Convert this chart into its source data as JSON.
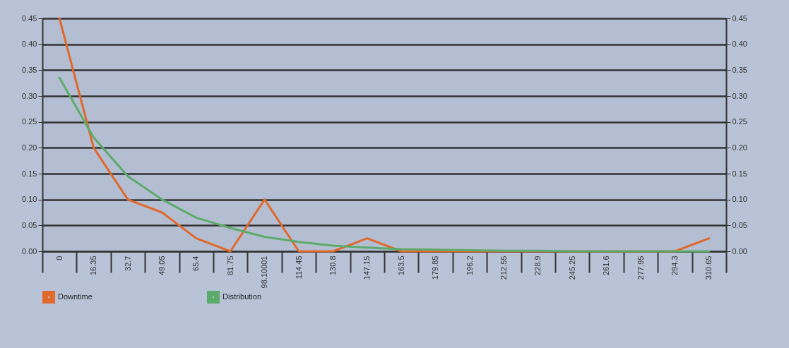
{
  "chart_data": {
    "type": "line",
    "categories": [
      "0",
      "16.35",
      "32.7",
      "49.05",
      "65.4",
      "81.75",
      "98.10001",
      "114.45",
      "130.8",
      "147.15",
      "163.5",
      "179.85",
      "196.2",
      "212.55",
      "228.9",
      "245.25",
      "261.6",
      "277.95",
      "294.3",
      "310.65"
    ],
    "series": [
      {
        "name": "Downtime",
        "color": "#e0692c",
        "values": [
          0.45,
          0.2,
          0.1,
          0.075,
          0.025,
          0.0,
          0.1,
          0.0,
          0.0,
          0.025,
          0.0,
          0.0,
          0.0,
          0.0,
          0.0,
          0.0,
          0.0,
          0.0,
          0.0,
          0.025
        ]
      },
      {
        "name": "Distribution",
        "color": "#5dab6a",
        "axis": "y2",
        "values": [
          0.335,
          0.22,
          0.145,
          0.1,
          0.065,
          0.045,
          0.028,
          0.018,
          0.011,
          0.007,
          0.004,
          0.003,
          0.002,
          0.001,
          0.001,
          0.0,
          0.0,
          0.0,
          0.0,
          0.0
        ]
      }
    ],
    "ylim": [
      0,
      0.45
    ],
    "yticks": [
      {
        "value": 0,
        "label": "0.00"
      },
      {
        "value": 0.05,
        "label": "0.05"
      },
      {
        "value": 0.1,
        "label": "0.10"
      },
      {
        "value": 0.15,
        "label": "0.15"
      },
      {
        "value": 0.2,
        "label": "0.20"
      },
      {
        "value": 0.25,
        "label": "0.25"
      },
      {
        "value": 0.3,
        "label": "0.30"
      },
      {
        "value": 0.35,
        "label": "0.35"
      },
      {
        "value": 0.4,
        "label": "0.40"
      },
      {
        "value": 0.45,
        "label": "0.45"
      }
    ],
    "y2lim": [
      0,
      0.45
    ],
    "y2ticks": [
      {
        "value": 0,
        "label": "0.00"
      },
      {
        "value": 0.05,
        "label": "0.05"
      },
      {
        "value": 0.1,
        "label": "0.10"
      },
      {
        "value": 0.15,
        "label": "0.15"
      },
      {
        "value": 0.2,
        "label": "0.20"
      },
      {
        "value": 0.25,
        "label": "0.25"
      },
      {
        "value": 0.3,
        "label": "0.30"
      },
      {
        "value": 0.35,
        "label": "0.35"
      },
      {
        "value": 0.4,
        "label": "0.40"
      },
      {
        "value": 0.45,
        "label": "0.45"
      }
    ],
    "grid": "y",
    "legend": "bottom",
    "marker": "none",
    "line_style": "solid"
  }
}
